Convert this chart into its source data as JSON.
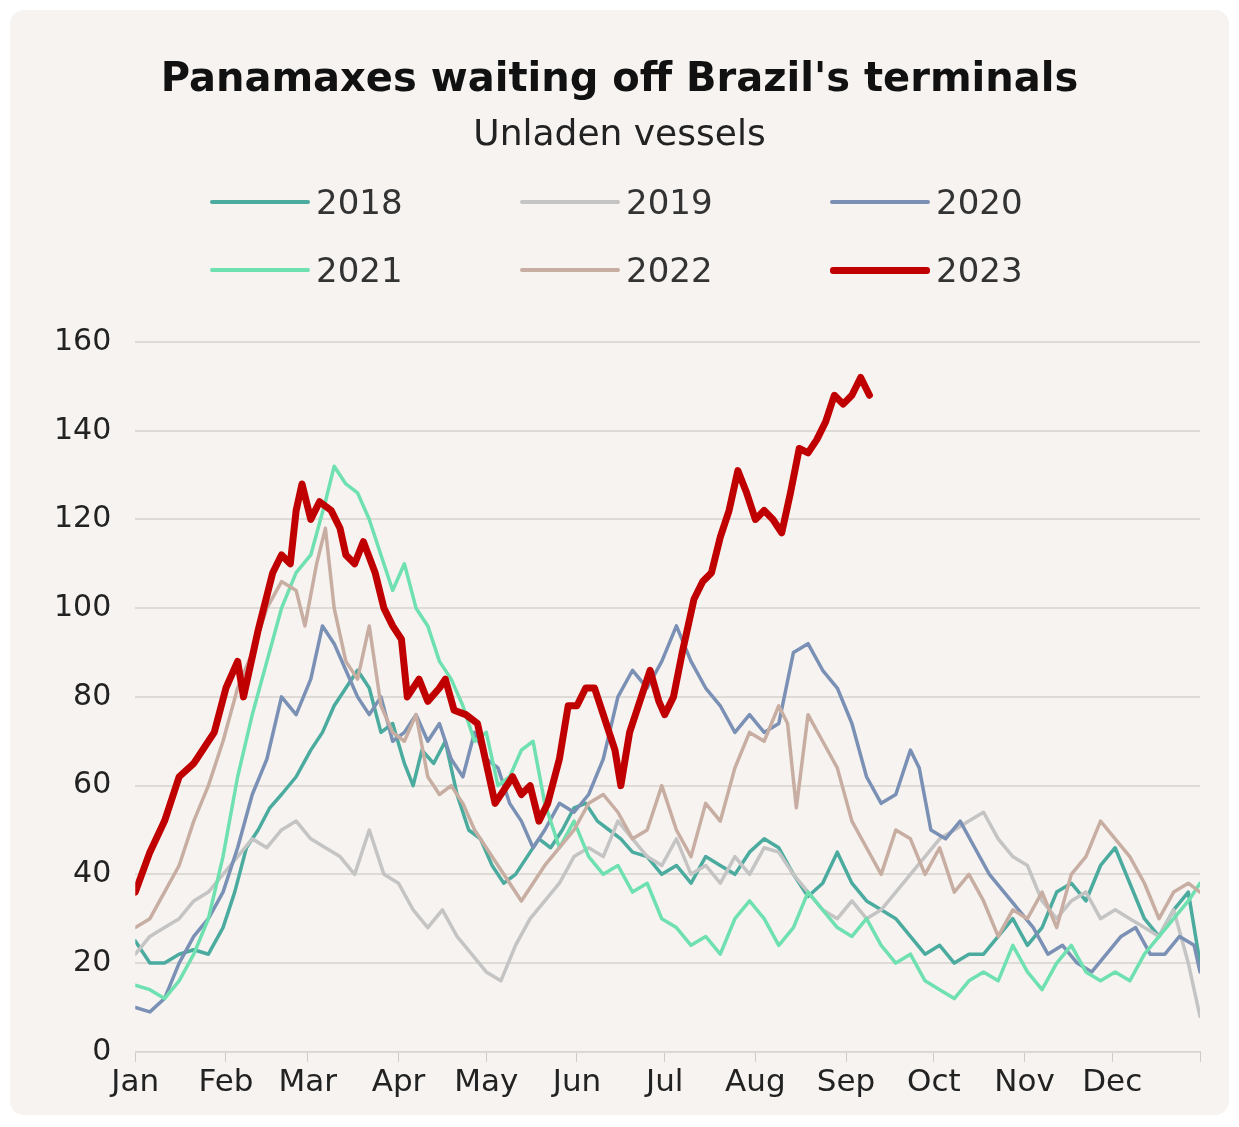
{
  "chart_data": {
    "type": "line",
    "title": "Panamaxes waiting off Brazil's terminals",
    "subtitle": "Unladen vessels",
    "xlim": [
      "--01-01",
      "--12-31"
    ],
    "xticks": [
      {
        "value": "--01-01",
        "label": "Jan"
      },
      {
        "value": "--02-01",
        "label": "Feb"
      },
      {
        "value": "--03-01",
        "label": "Mar"
      },
      {
        "value": "--04-01",
        "label": "Apr"
      },
      {
        "value": "--05-01",
        "label": "May"
      },
      {
        "value": "--06-01",
        "label": "Jun"
      },
      {
        "value": "--07-01",
        "label": "Jul"
      },
      {
        "value": "--08-01",
        "label": "Aug"
      },
      {
        "value": "--09-01",
        "label": "Sep"
      },
      {
        "value": "--10-01",
        "label": "Oct"
      },
      {
        "value": "--11-01",
        "label": "Nov"
      },
      {
        "value": "--12-01",
        "label": "Dec"
      },
      {
        "value": "--12-31",
        "label": null
      }
    ],
    "ylim": [
      0,
      160
    ],
    "yticks": [
      0,
      20,
      40,
      60,
      80,
      100,
      120,
      140,
      160
    ],
    "grid": "y",
    "legend": "top",
    "marker": "none",
    "line_style": "solid",
    "series": [
      {
        "name": "2018",
        "color": "#4aab9e",
        "x": [
          "--01-01",
          "--01-06",
          "--01-11",
          "--01-16",
          "--01-21",
          "--01-26",
          "--01-31",
          "--02-04",
          "--02-08",
          "--02-12",
          "--02-16",
          "--02-20",
          "--02-25",
          "--03-02",
          "--03-06",
          "--03-10",
          "--03-14",
          "--03-18",
          "--03-22",
          "--03-26",
          "--03-30",
          "--04-03",
          "--04-06",
          "--04-09",
          "--04-13",
          "--04-17",
          "--04-21",
          "--04-25",
          "--04-29",
          "--05-03",
          "--05-07",
          "--05-11",
          "--05-15",
          "--05-19",
          "--05-23",
          "--05-27",
          "--05-31",
          "--06-04",
          "--06-08",
          "--06-12",
          "--06-16",
          "--06-20",
          "--06-25",
          "--06-30",
          "--07-05",
          "--07-10",
          "--07-15",
          "--07-20",
          "--07-25",
          "--07-30",
          "--08-04",
          "--08-09",
          "--08-14",
          "--08-19",
          "--08-24",
          "--08-29",
          "--09-03",
          "--09-08",
          "--09-13",
          "--09-18",
          "--09-23",
          "--09-28",
          "--10-03",
          "--10-08",
          "--10-13",
          "--10-18",
          "--10-23",
          "--10-28",
          "--11-02",
          "--11-07",
          "--11-12",
          "--11-17",
          "--11-22",
          "--11-27",
          "--12-02",
          "--12-07",
          "--12-12",
          "--12-17",
          "--12-22",
          "--12-27",
          "--12-31"
        ],
        "values": [
          25,
          20,
          20,
          22,
          23,
          22,
          28,
          36,
          46,
          50,
          55,
          58,
          62,
          68,
          72,
          78,
          82,
          86,
          82,
          72,
          74,
          65,
          60,
          68,
          65,
          70,
          58,
          50,
          48,
          42,
          38,
          40,
          44,
          48,
          46,
          50,
          55,
          56,
          52,
          50,
          48,
          45,
          44,
          40,
          42,
          38,
          44,
          42,
          40,
          45,
          48,
          46,
          40,
          35,
          38,
          45,
          38,
          34,
          32,
          30,
          26,
          22,
          24,
          20,
          22,
          22,
          26,
          30,
          24,
          28,
          36,
          38,
          34,
          42,
          46,
          38,
          30,
          26,
          32,
          36,
          20
        ]
      },
      {
        "name": "2019",
        "color": "#c4c4c4",
        "x": [
          "--01-01",
          "--01-06",
          "--01-11",
          "--01-16",
          "--01-21",
          "--01-26",
          "--01-31",
          "--02-05",
          "--02-10",
          "--02-15",
          "--02-20",
          "--02-25",
          "--03-02",
          "--03-07",
          "--03-12",
          "--03-17",
          "--03-22",
          "--03-27",
          "--04-01",
          "--04-06",
          "--04-11",
          "--04-16",
          "--04-21",
          "--04-26",
          "--05-01",
          "--05-06",
          "--05-11",
          "--05-16",
          "--05-21",
          "--05-26",
          "--05-31",
          "--06-05",
          "--06-10",
          "--06-15",
          "--06-20",
          "--06-25",
          "--06-30",
          "--07-05",
          "--07-10",
          "--07-15",
          "--07-20",
          "--07-25",
          "--07-30",
          "--08-04",
          "--08-09",
          "--08-14",
          "--08-19",
          "--08-24",
          "--08-29",
          "--09-03",
          "--09-08",
          "--09-13",
          "--09-18",
          "--09-23",
          "--09-28",
          "--10-03",
          "--10-08",
          "--10-13",
          "--10-18",
          "--10-23",
          "--10-28",
          "--11-02",
          "--11-07",
          "--11-12",
          "--11-17",
          "--11-22",
          "--11-27",
          "--12-02",
          "--12-07",
          "--12-12",
          "--12-17",
          "--12-22",
          "--12-27",
          "--12-31"
        ],
        "values": [
          22,
          26,
          28,
          30,
          34,
          36,
          40,
          44,
          48,
          46,
          50,
          52,
          48,
          46,
          44,
          40,
          50,
          40,
          38,
          32,
          28,
          32,
          26,
          22,
          18,
          16,
          24,
          30,
          34,
          38,
          44,
          46,
          44,
          52,
          48,
          44,
          42,
          48,
          40,
          42,
          38,
          44,
          40,
          46,
          45,
          40,
          36,
          32,
          30,
          34,
          30,
          32,
          36,
          40,
          44,
          48,
          50,
          52,
          54,
          48,
          44,
          42,
          34,
          30,
          34,
          36,
          30,
          32,
          30,
          28,
          26,
          32,
          20,
          8
        ]
      },
      {
        "name": "2020",
        "color": "#7a90b4",
        "x": [
          "--01-01",
          "--01-06",
          "--01-11",
          "--01-16",
          "--01-21",
          "--01-26",
          "--01-31",
          "--02-05",
          "--02-10",
          "--02-15",
          "--02-20",
          "--02-25",
          "--03-02",
          "--03-06",
          "--03-10",
          "--03-14",
          "--03-18",
          "--03-22",
          "--03-26",
          "--03-30",
          "--04-03",
          "--04-07",
          "--04-11",
          "--04-15",
          "--04-19",
          "--04-23",
          "--04-27",
          "--05-01",
          "--05-05",
          "--05-09",
          "--05-13",
          "--05-17",
          "--05-21",
          "--05-26",
          "--05-31",
          "--06-05",
          "--06-10",
          "--06-15",
          "--06-20",
          "--06-25",
          "--06-30",
          "--07-05",
          "--07-10",
          "--07-15",
          "--07-20",
          "--07-25",
          "--07-30",
          "--08-04",
          "--08-09",
          "--08-14",
          "--08-19",
          "--08-24",
          "--08-29",
          "--09-03",
          "--09-08",
          "--09-13",
          "--09-18",
          "--09-23",
          "--09-26",
          "--09-30",
          "--10-05",
          "--10-10",
          "--10-15",
          "--10-20",
          "--10-25",
          "--10-30",
          "--11-04",
          "--11-09",
          "--11-14",
          "--11-19",
          "--11-24",
          "--11-29",
          "--12-04",
          "--12-09",
          "--12-14",
          "--12-19",
          "--12-24",
          "--12-29",
          "--12-31"
        ],
        "values": [
          10,
          9,
          12,
          20,
          26,
          30,
          36,
          46,
          58,
          66,
          80,
          76,
          84,
          96,
          92,
          86,
          80,
          76,
          80,
          70,
          72,
          76,
          70,
          74,
          66,
          62,
          72,
          66,
          64,
          56,
          52,
          46,
          50,
          56,
          54,
          58,
          66,
          80,
          86,
          82,
          88,
          96,
          88,
          82,
          78,
          72,
          76,
          72,
          74,
          90,
          92,
          86,
          82,
          74,
          62,
          56,
          58,
          68,
          64,
          50,
          48,
          52,
          46,
          40,
          36,
          32,
          28,
          22,
          24,
          20,
          18,
          22,
          26,
          28,
          22,
          22,
          26,
          24,
          18
        ]
      },
      {
        "name": "2021",
        "color": "#6fe0b0",
        "x": [
          "--01-01",
          "--01-06",
          "--01-11",
          "--01-16",
          "--01-21",
          "--01-26",
          "--01-31",
          "--02-05",
          "--02-10",
          "--02-15",
          "--02-20",
          "--02-25",
          "--03-02",
          "--03-07",
          "--03-10",
          "--03-14",
          "--03-18",
          "--03-22",
          "--03-26",
          "--03-30",
          "--04-03",
          "--04-07",
          "--04-11",
          "--04-15",
          "--04-19",
          "--04-23",
          "--04-27",
          "--05-01",
          "--05-05",
          "--05-09",
          "--05-13",
          "--05-17",
          "--05-21",
          "--05-26",
          "--05-31",
          "--06-05",
          "--06-10",
          "--06-15",
          "--06-20",
          "--06-25",
          "--06-30",
          "--07-05",
          "--07-10",
          "--07-15",
          "--07-20",
          "--07-25",
          "--07-30",
          "--08-04",
          "--08-09",
          "--08-14",
          "--08-19",
          "--08-24",
          "--08-29",
          "--09-03",
          "--09-08",
          "--09-13",
          "--09-18",
          "--09-23",
          "--09-28",
          "--10-03",
          "--10-08",
          "--10-13",
          "--10-18",
          "--10-23",
          "--10-28",
          "--11-02",
          "--11-07",
          "--11-12",
          "--11-17",
          "--11-22",
          "--11-27",
          "--12-02",
          "--12-07",
          "--12-12",
          "--12-17",
          "--12-22",
          "--12-27",
          "--12-31"
        ],
        "values": [
          15,
          14,
          12,
          16,
          22,
          30,
          44,
          62,
          76,
          88,
          100,
          108,
          112,
          124,
          132,
          128,
          126,
          120,
          112,
          104,
          110,
          100,
          96,
          88,
          84,
          78,
          70,
          72,
          60,
          62,
          68,
          70,
          56,
          46,
          52,
          44,
          40,
          42,
          36,
          38,
          30,
          28,
          24,
          26,
          22,
          30,
          34,
          30,
          24,
          28,
          36,
          32,
          28,
          26,
          30,
          24,
          20,
          22,
          16,
          14,
          12,
          16,
          18,
          16,
          24,
          18,
          14,
          20,
          24,
          18,
          16,
          18,
          16,
          22,
          26,
          30,
          34,
          38
        ]
      },
      {
        "name": "2022",
        "color": "#c8aea2",
        "x": [
          "--01-01",
          "--01-06",
          "--01-11",
          "--01-16",
          "--01-21",
          "--01-26",
          "--01-31",
          "--02-05",
          "--02-10",
          "--02-15",
          "--02-20",
          "--02-25",
          "--02-28",
          "--03-04",
          "--03-07",
          "--03-10",
          "--03-14",
          "--03-18",
          "--03-22",
          "--03-26",
          "--03-30",
          "--04-03",
          "--04-07",
          "--04-11",
          "--04-15",
          "--04-19",
          "--04-23",
          "--04-27",
          "--05-01",
          "--05-05",
          "--05-09",
          "--05-13",
          "--05-17",
          "--05-21",
          "--05-26",
          "--05-31",
          "--06-05",
          "--06-10",
          "--06-15",
          "--06-20",
          "--06-25",
          "--06-30",
          "--07-05",
          "--07-10",
          "--07-15",
          "--07-20",
          "--07-25",
          "--07-30",
          "--08-04",
          "--08-09",
          "--08-12",
          "--08-15",
          "--08-19",
          "--08-24",
          "--08-29",
          "--09-03",
          "--09-08",
          "--09-13",
          "--09-18",
          "--09-23",
          "--09-28",
          "--10-03",
          "--10-08",
          "--10-13",
          "--10-18",
          "--10-23",
          "--10-28",
          "--11-02",
          "--11-07",
          "--11-12",
          "--11-17",
          "--11-22",
          "--11-27",
          "--12-02",
          "--12-07",
          "--12-12",
          "--12-17",
          "--12-22",
          "--12-27",
          "--12-31"
        ],
        "values": [
          28,
          30,
          36,
          42,
          52,
          60,
          70,
          82,
          90,
          100,
          106,
          104,
          96,
          110,
          118,
          100,
          88,
          84,
          96,
          78,
          72,
          70,
          76,
          62,
          58,
          60,
          56,
          50,
          46,
          42,
          38,
          34,
          38,
          42,
          46,
          50,
          56,
          58,
          54,
          48,
          50,
          60,
          50,
          44,
          56,
          52,
          64,
          72,
          70,
          78,
          74,
          55,
          76,
          70,
          64,
          52,
          46,
          40,
          50,
          48,
          40,
          46,
          36,
          40,
          34,
          26,
          32,
          30,
          36,
          28,
          40,
          44,
          52,
          48,
          44,
          38,
          30,
          36,
          38,
          36
        ]
      },
      {
        "name": "2023",
        "color": "#c00000",
        "x": [
          "--01-01",
          "--01-06",
          "--01-11",
          "--01-16",
          "--01-21",
          "--01-28",
          "--02-01",
          "--02-05",
          "--02-07",
          "--02-12",
          "--02-17",
          "--02-20",
          "--02-23",
          "--02-25",
          "--02-27",
          "--03-02",
          "--03-05",
          "--03-09",
          "--03-12",
          "--03-14",
          "--03-17",
          "--03-20",
          "--03-24",
          "--03-27",
          "--03-30",
          "--04-02",
          "--04-04",
          "--04-08",
          "--04-11",
          "--04-15",
          "--04-17",
          "--04-20",
          "--04-24",
          "--04-28",
          "--05-01",
          "--05-04",
          "--05-07",
          "--05-10",
          "--05-13",
          "--05-16",
          "--05-19",
          "--05-22",
          "--05-26",
          "--05-29",
          "--06-01",
          "--06-04",
          "--06-07",
          "--06-10",
          "--06-14",
          "--06-16",
          "--06-19",
          "--06-23",
          "--06-26",
          "--06-29",
          "--07-01",
          "--07-04",
          "--07-07",
          "--07-11",
          "--07-14",
          "--07-17",
          "--07-20",
          "--07-23",
          "--07-26",
          "--07-29",
          "--08-01",
          "--08-04",
          "--08-07",
          "--08-10",
          "--08-13",
          "--08-16",
          "--08-19",
          "--08-22",
          "--08-25",
          "--08-28",
          "--08-31",
          "--09-03",
          "--09-06",
          "--09-09"
        ],
        "values": [
          36,
          45,
          52,
          62,
          65,
          72,
          82,
          88,
          80,
          95,
          108,
          112,
          110,
          122,
          128,
          120,
          124,
          122,
          118,
          112,
          110,
          115,
          108,
          100,
          96,
          93,
          80,
          84,
          79,
          82,
          84,
          77,
          76,
          74,
          65,
          56,
          59,
          62,
          58,
          60,
          52,
          56,
          66,
          78,
          78,
          82,
          82,
          76,
          68,
          60,
          72,
          80,
          86,
          79,
          76,
          80,
          90,
          102,
          106,
          108,
          116,
          122,
          131,
          126,
          120,
          122,
          120,
          117,
          126,
          136,
          135,
          138,
          142,
          148,
          146,
          148,
          152,
          148
        ]
      }
    ]
  }
}
